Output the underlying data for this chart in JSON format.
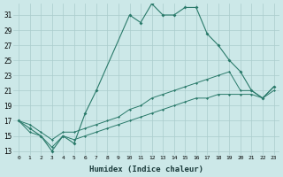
{
  "xlabel": "Humidex (Indice chaleur)",
  "background_color": "#cce8e8",
  "grid_color": "#aacccc",
  "line_color": "#2a7a6a",
  "xlim": [
    -0.5,
    23.5
  ],
  "ylim": [
    12.5,
    32.5
  ],
  "yticks": [
    13,
    15,
    17,
    19,
    21,
    23,
    25,
    27,
    29,
    31
  ],
  "xticks": [
    0,
    1,
    2,
    3,
    4,
    5,
    6,
    7,
    8,
    9,
    10,
    11,
    12,
    13,
    14,
    15,
    16,
    17,
    18,
    19,
    20,
    21,
    22,
    23
  ],
  "line1": {
    "x": [
      0,
      1,
      2,
      3,
      4,
      5,
      6,
      7,
      10,
      11,
      12,
      13,
      14,
      15,
      16,
      17,
      18,
      19,
      20,
      21,
      22,
      23
    ],
    "y": [
      17,
      16,
      15,
      13,
      15,
      14,
      18,
      21,
      31,
      30,
      32.5,
      31,
      31,
      32,
      32,
      28.5,
      27,
      25,
      23.5,
      21,
      20,
      21.5
    ]
  },
  "line2": {
    "x": [
      0,
      1,
      2,
      3,
      4,
      5,
      6,
      7,
      8,
      9,
      10,
      11,
      12,
      13,
      14,
      15,
      16,
      17,
      18,
      19,
      20,
      21,
      22,
      23
    ],
    "y": [
      17,
      16.5,
      15.5,
      14.5,
      15.5,
      15.5,
      16,
      16.5,
      17,
      17.5,
      18.5,
      19,
      20,
      20.5,
      21,
      21.5,
      22,
      22.5,
      23,
      23.5,
      21,
      21,
      20,
      21.5
    ]
  },
  "line3": {
    "x": [
      0,
      1,
      2,
      3,
      4,
      5,
      6,
      7,
      8,
      9,
      10,
      11,
      12,
      13,
      14,
      15,
      16,
      17,
      18,
      19,
      20,
      21,
      22,
      23
    ],
    "y": [
      17,
      15.5,
      15,
      13.5,
      15,
      14.5,
      15,
      15.5,
      16,
      16.5,
      17,
      17.5,
      18,
      18.5,
      19,
      19.5,
      20,
      20,
      20.5,
      20.5,
      20.5,
      20.5,
      20,
      21
    ]
  }
}
